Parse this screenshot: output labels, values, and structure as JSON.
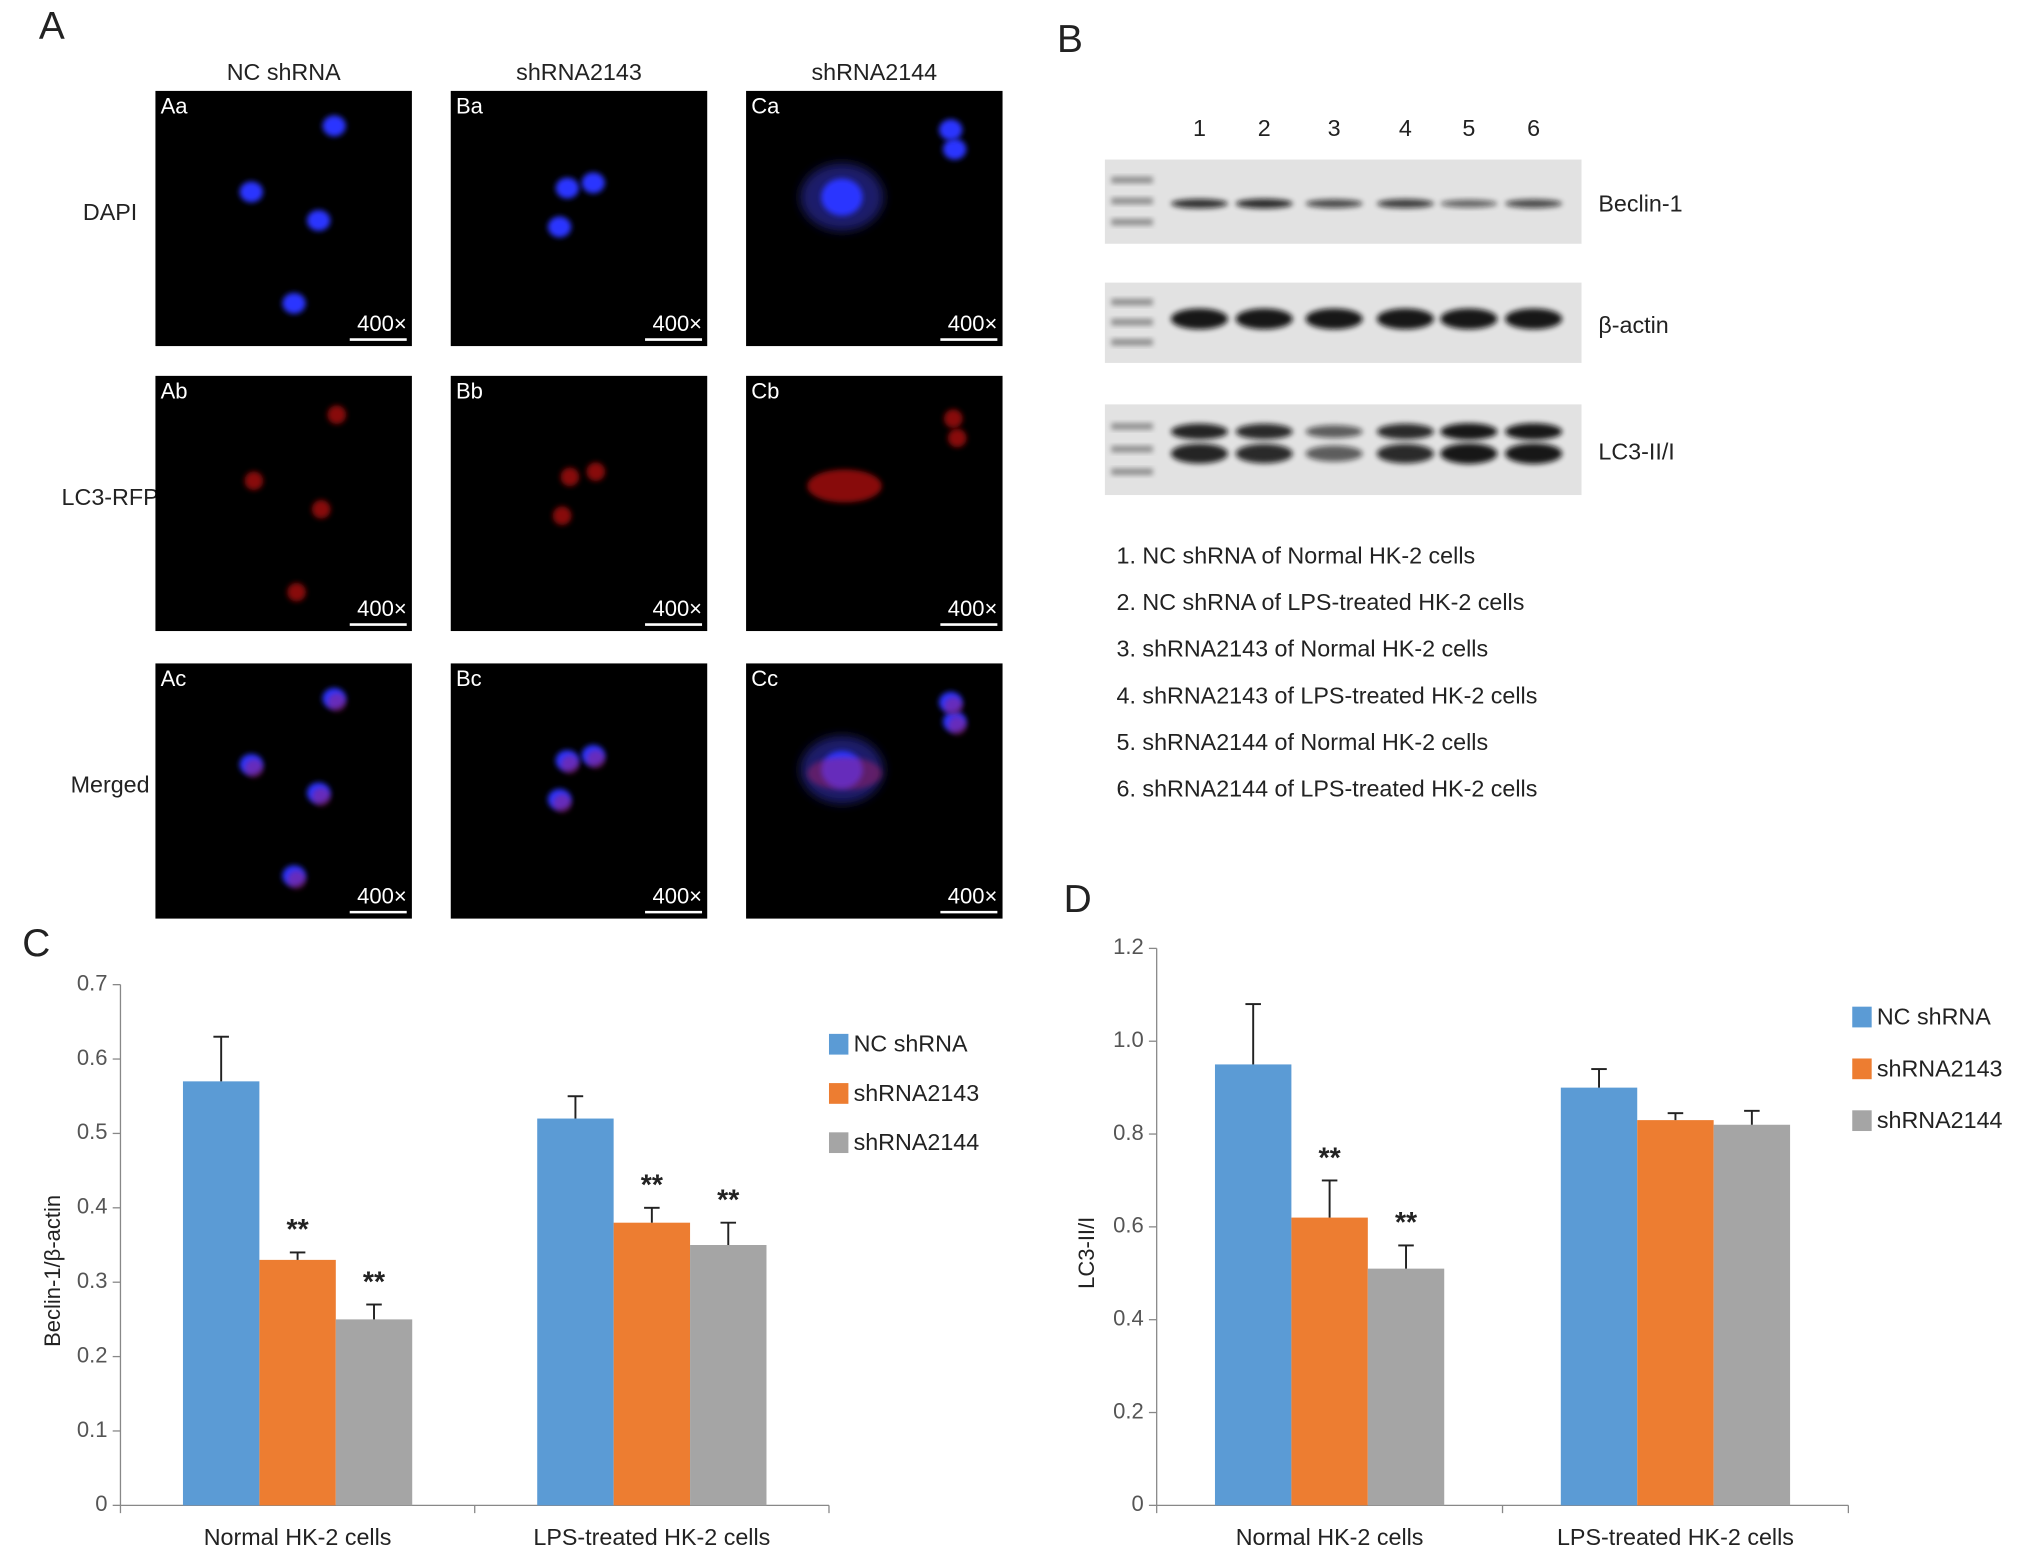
{
  "panel_labels": [
    "A",
    "B",
    "C",
    "D"
  ],
  "panel_a": {
    "columns": [
      "NC shRNA",
      "shRNA2143",
      "shRNA2144"
    ],
    "rows": [
      {
        "label": "DAPI",
        "cells": [
          "Aa",
          "Ba",
          "Ca"
        ]
      },
      {
        "label": "LC3-RFP",
        "cells": [
          "Ab",
          "Bb",
          "Cb"
        ]
      },
      {
        "label": "Merged",
        "cells": [
          "Ac",
          "Bc",
          "Cc"
        ]
      }
    ],
    "magnification": "400×"
  },
  "panel_b": {
    "lanes": [
      "1",
      "2",
      "3",
      "4",
      "5",
      "6"
    ],
    "blots": [
      "Beclin-1",
      "β-actin",
      "LC3-II/I"
    ],
    "key": [
      "1. NC shRNA of Normal HK-2 cells",
      "2. NC shRNA of LPS-treated HK-2 cells",
      "3. shRNA2143 of Normal HK-2 cells",
      "4. shRNA2143 of LPS-treated HK-2 cells",
      "5. shRNA2144 of Normal HK-2 cells",
      "6. shRNA2144 of LPS-treated HK-2 cells"
    ]
  },
  "chart_data": [
    {
      "type": "bar",
      "ylabel": "Beclin-1/β-actin",
      "categories": [
        "Normal HK-2 cells",
        "LPS-treated HK-2 cells"
      ],
      "series": [
        {
          "name": "NC shRNA",
          "color": "#5b9bd5",
          "values": [
            0.57,
            0.52
          ],
          "errors": [
            0.06,
            0.03
          ]
        },
        {
          "name": "shRNA2143",
          "color": "#ed7d31",
          "values": [
            0.33,
            0.38
          ],
          "errors": [
            0.01,
            0.02
          ],
          "significance": [
            "**",
            "**"
          ]
        },
        {
          "name": "shRNA2144",
          "color": "#a5a5a5",
          "values": [
            0.25,
            0.35
          ],
          "errors": [
            0.02,
            0.03
          ],
          "significance": [
            "**",
            "**"
          ]
        }
      ],
      "ylim": [
        0,
        0.7
      ],
      "yticks": [
        0,
        0.1,
        0.2,
        0.3,
        0.4,
        0.5,
        0.6,
        0.7
      ],
      "grid": false,
      "legend": "right"
    },
    {
      "type": "bar",
      "ylabel": "LC3-II/I",
      "categories": [
        "Normal HK-2 cells",
        "LPS-treated HK-2 cells"
      ],
      "series": [
        {
          "name": "NC shRNA",
          "color": "#5b9bd5",
          "values": [
            0.95,
            0.9
          ],
          "errors": [
            0.13,
            0.04
          ]
        },
        {
          "name": "shRNA2143",
          "color": "#ed7d31",
          "values": [
            0.62,
            0.83
          ],
          "errors": [
            0.08,
            0.015
          ],
          "significance": [
            "**",
            null
          ]
        },
        {
          "name": "shRNA2144",
          "color": "#a5a5a5",
          "values": [
            0.51,
            0.82
          ],
          "errors": [
            0.05,
            0.03
          ],
          "significance": [
            "**",
            null
          ]
        }
      ],
      "ylim": [
        0,
        1.2
      ],
      "yticks": [
        0,
        0.2,
        0.4,
        0.6,
        0.8,
        {
          "value": 1,
          "label": "1.0"
        },
        1.2
      ],
      "grid": false,
      "legend": "right"
    }
  ]
}
